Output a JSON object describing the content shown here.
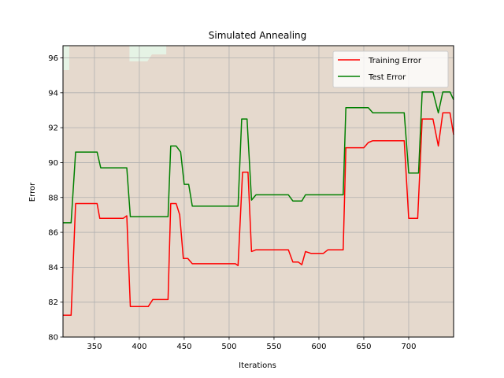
{
  "chart_data": {
    "type": "line",
    "title": "Simulated Annealing",
    "xlabel": "Iterations",
    "ylabel": "Error",
    "xlim": [
      315,
      750
    ],
    "ylim": [
      80,
      96.7
    ],
    "xticks": [
      350,
      400,
      450,
      500,
      550,
      600,
      650,
      700
    ],
    "yticks": [
      80,
      82,
      84,
      86,
      88,
      90,
      92,
      94,
      96
    ],
    "grid": true,
    "legend_position": "top-right",
    "background_color": "#e5d9cd",
    "series": [
      {
        "name": "Training Error",
        "color": "#ff0000",
        "points": [
          [
            315,
            81.25
          ],
          [
            324,
            81.25
          ],
          [
            329,
            87.65
          ],
          [
            353,
            87.65
          ],
          [
            356,
            86.8
          ],
          [
            382,
            86.8
          ],
          [
            386,
            86.95
          ],
          [
            390,
            81.75
          ],
          [
            410,
            81.75
          ],
          [
            415,
            82.15
          ],
          [
            432,
            82.15
          ],
          [
            435,
            87.65
          ],
          [
            441,
            87.65
          ],
          [
            445,
            87.0
          ],
          [
            449,
            84.5
          ],
          [
            454,
            84.5
          ],
          [
            459,
            84.2
          ],
          [
            507,
            84.2
          ],
          [
            510,
            84.1
          ],
          [
            515,
            89.45
          ],
          [
            521,
            89.45
          ],
          [
            525,
            84.9
          ],
          [
            530,
            85.0
          ],
          [
            566,
            85.0
          ],
          [
            571,
            84.3
          ],
          [
            577,
            84.3
          ],
          [
            581,
            84.15
          ],
          [
            585,
            84.9
          ],
          [
            591,
            84.8
          ],
          [
            605,
            84.8
          ],
          [
            610,
            85.0
          ],
          [
            627,
            85.0
          ],
          [
            630,
            90.85
          ],
          [
            650,
            90.85
          ],
          [
            655,
            91.15
          ],
          [
            660,
            91.25
          ],
          [
            695,
            91.25
          ],
          [
            700,
            86.8
          ],
          [
            710,
            86.8
          ],
          [
            715,
            92.5
          ],
          [
            727,
            92.5
          ],
          [
            733,
            90.95
          ],
          [
            738,
            92.85
          ],
          [
            746,
            92.85
          ],
          [
            750,
            91.6
          ]
        ]
      },
      {
        "name": "Test Error",
        "color": "#008000",
        "points": [
          [
            315,
            86.55
          ],
          [
            324,
            86.55
          ],
          [
            329,
            90.6
          ],
          [
            353,
            90.6
          ],
          [
            357,
            89.7
          ],
          [
            386,
            89.7
          ],
          [
            390,
            86.9
          ],
          [
            432,
            86.9
          ],
          [
            435,
            90.95
          ],
          [
            441,
            90.95
          ],
          [
            446,
            90.6
          ],
          [
            450,
            88.75
          ],
          [
            455,
            88.75
          ],
          [
            459,
            87.5
          ],
          [
            510,
            87.5
          ],
          [
            514,
            92.5
          ],
          [
            520,
            92.5
          ],
          [
            525,
            87.85
          ],
          [
            530,
            88.15
          ],
          [
            566,
            88.15
          ],
          [
            571,
            87.8
          ],
          [
            581,
            87.8
          ],
          [
            585,
            88.15
          ],
          [
            627,
            88.15
          ],
          [
            630,
            93.15
          ],
          [
            655,
            93.15
          ],
          [
            660,
            92.85
          ],
          [
            695,
            92.85
          ],
          [
            700,
            89.4
          ],
          [
            711,
            89.4
          ],
          [
            715,
            94.05
          ],
          [
            727,
            94.05
          ],
          [
            733,
            92.85
          ],
          [
            738,
            94.05
          ],
          [
            746,
            94.05
          ],
          [
            750,
            93.6
          ]
        ]
      }
    ],
    "background_regions": [
      {
        "color": "#e5f3e5",
        "points": [
          [
            315,
            95.3
          ],
          [
            322,
            95.3
          ],
          [
            322,
            96.7
          ],
          [
            315,
            96.7
          ]
        ]
      },
      {
        "color": "#e5f3e5",
        "points": [
          [
            389,
            95.8
          ],
          [
            409,
            95.8
          ],
          [
            414,
            96.2
          ],
          [
            430,
            96.2
          ],
          [
            430,
            96.7
          ],
          [
            389,
            96.7
          ]
        ]
      }
    ]
  }
}
